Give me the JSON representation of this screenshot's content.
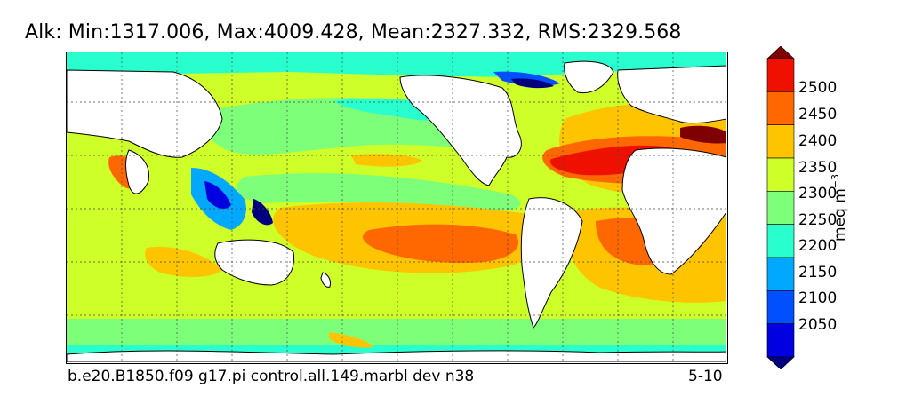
{
  "title": "Alk: Min:1317.006, Max:4009.428, Mean:2327.332, RMS:2329.568",
  "footer": {
    "case_name": "b.e20.B1850.f09 g17.pi control.all.149.marbl dev n38",
    "period": "5-10"
  },
  "colorbar": {
    "unit_label": "meq m",
    "unit_exponent": "−3",
    "ticks": [
      "2500",
      "2450",
      "2400",
      "2350",
      "2300",
      "2250",
      "2200",
      "2150",
      "2100",
      "2050"
    ],
    "levels": [
      {
        "range": "<2025",
        "color": "#00007f"
      },
      {
        "range": "2025-2075",
        "color": "#0000e0"
      },
      {
        "range": "2075-2125",
        "color": "#0050ff"
      },
      {
        "range": "2125-2175",
        "color": "#00a8ff"
      },
      {
        "range": "2175-2225",
        "color": "#29ffce"
      },
      {
        "range": "2225-2275",
        "color": "#7dff7a"
      },
      {
        "range": "2275-2325",
        "color": "#ceff29"
      },
      {
        "range": "2325-2375",
        "color": "#ffc400"
      },
      {
        "range": "2375-2425",
        "color": "#ff6800"
      },
      {
        "range": "2425-2475",
        "color": "#f01000"
      },
      {
        "range": ">2475",
        "color": "#7f0000"
      }
    ]
  },
  "map": {
    "projection": "cylindrical",
    "grid": true,
    "land_color": "#ffffff",
    "coastline_color": "#000000"
  }
}
